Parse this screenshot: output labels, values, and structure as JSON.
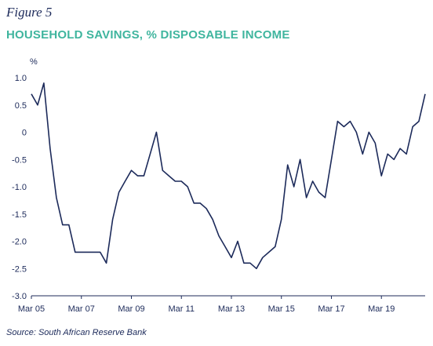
{
  "figure_label": "Figure 5",
  "title": "HOUSEHOLD SAVINGS, % DISPOSABLE INCOME",
  "source": "Source: South African Reserve Bank",
  "colors": {
    "line": "#1c2a5a",
    "title": "#3fb59e",
    "axis": "#1c2a5a"
  },
  "chart_data": {
    "type": "line",
    "title": "HOUSEHOLD SAVINGS, % DISPOSABLE INCOME",
    "ylabel": "%",
    "xlabel": "",
    "ylim": [
      -3.0,
      1.0
    ],
    "yticks": [
      "1.0",
      "0.5",
      "0",
      "-0.5",
      "-1.0",
      "-1.5",
      "-2.0",
      "-2.5",
      "-3.0"
    ],
    "xticks": [
      "Mar 05",
      "Mar 07",
      "Mar 09",
      "Mar 11",
      "Mar 13",
      "Mar 15",
      "Mar 17",
      "Mar 19"
    ],
    "grid": false,
    "series": [
      {
        "values": [
          0.7,
          0.5,
          0.9,
          -0.3,
          -1.2,
          -1.7,
          -1.7,
          -2.2,
          -2.2,
          -2.2,
          -2.2,
          -2.2,
          -2.4,
          -1.6,
          -1.1,
          -0.9,
          -0.7,
          -0.8,
          -0.8,
          -0.4,
          0.0,
          -0.7,
          -0.8,
          -0.9,
          -0.9,
          -1.0,
          -1.3,
          -1.3,
          -1.4,
          -1.6,
          -1.9,
          -2.1,
          -2.3,
          -2.0,
          -2.4,
          -2.4,
          -2.5,
          -2.3,
          -2.2,
          -2.1,
          -1.6,
          -0.6,
          -1.0,
          -0.5,
          -1.2,
          -0.9,
          -1.1,
          -1.2,
          -0.5,
          0.2,
          0.1,
          0.2,
          0.0,
          -0.4,
          0.0,
          -0.2,
          -0.8,
          -0.4,
          -0.5,
          -0.3,
          -0.4,
          0.1,
          0.2,
          0.7
        ]
      }
    ]
  }
}
